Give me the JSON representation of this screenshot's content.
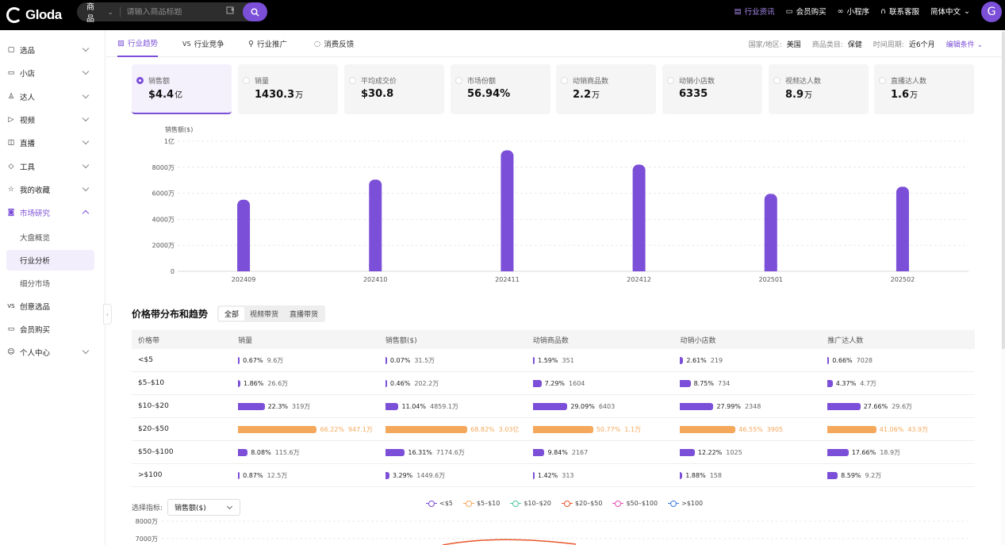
{
  "app": {
    "logo": "Gloda",
    "avatar": "G"
  },
  "search": {
    "type": "商品",
    "placeholder": "请输入商品标题"
  },
  "top_nav": [
    "行业资讯",
    "会员购买",
    "小程序",
    "联系客服",
    "简体中文"
  ],
  "sidebar": {
    "items": [
      {
        "label": "选品",
        "icon": "box-icon"
      },
      {
        "label": "小店",
        "icon": "shop-icon"
      },
      {
        "label": "达人",
        "icon": "user-icon"
      },
      {
        "label": "视频",
        "icon": "video-icon"
      },
      {
        "label": "直播",
        "icon": "live-icon"
      },
      {
        "label": "工具",
        "icon": "tool-icon"
      },
      {
        "label": "我的收藏",
        "icon": "star-icon"
      },
      {
        "label": "市场研究",
        "icon": "market-icon"
      }
    ],
    "sub_items": [
      "大盘概览",
      "行业分析",
      "细分市场"
    ],
    "bottom_items": [
      {
        "label": "创意选品",
        "icon": "vs-icon"
      },
      {
        "label": "会员购买",
        "icon": "card-icon"
      },
      {
        "label": "个人中心",
        "icon": "smile-icon"
      }
    ]
  },
  "tabs": [
    "行业趋势",
    "行业竞争",
    "行业推广",
    "消费反馈"
  ],
  "filters": {
    "country_label": "国家/地区:",
    "country": "美国",
    "category_label": "商品类目:",
    "category": "保健",
    "period_label": "时间周期:",
    "period": "近6个月",
    "edit": "编辑条件"
  },
  "cards": [
    {
      "label": "销售额",
      "value": "$4.4",
      "unit": "亿"
    },
    {
      "label": "销量",
      "value": "1430.3",
      "unit": "万"
    },
    {
      "label": "平均成交价",
      "value": "$30.8",
      "unit": ""
    },
    {
      "label": "市场份额",
      "value": "56.94%",
      "unit": ""
    },
    {
      "label": "动销商品数",
      "value": "2.2",
      "unit": "万"
    },
    {
      "label": "动销小店数",
      "value": "6335",
      "unit": ""
    },
    {
      "label": "视频达人数",
      "value": "8.9",
      "unit": "万"
    },
    {
      "label": "直播达人数",
      "value": "1.6",
      "unit": "万"
    }
  ],
  "chart_data": {
    "type": "bar",
    "ylabel": "销售额($)",
    "categories": [
      "202409",
      "202410",
      "202411",
      "202412",
      "202501",
      "202502"
    ],
    "values": [
      5500,
      7050,
      9300,
      8200,
      5950,
      6500
    ],
    "yticks": [
      "0",
      "2000万",
      "4000万",
      "6000万",
      "8000万",
      "1亿"
    ],
    "ylim": [
      0,
      10000
    ],
    "unit": "万",
    "color": "#7b4fd7",
    "grid": true
  },
  "section2": {
    "title": "价格带分布和趋势",
    "segments": [
      "全部",
      "视频带货",
      "直播带货"
    ],
    "headers": [
      "价格带",
      "销量",
      "销售额($)",
      "动销商品数",
      "动销小店数",
      "推广达人数"
    ],
    "rows": [
      {
        "band": "<$5",
        "cells": [
          [
            "0.67%",
            "9.6万",
            0.67
          ],
          [
            "0.07%",
            "31.5万",
            0.07
          ],
          [
            "1.59%",
            "351",
            1.59
          ],
          [
            "2.61%",
            "219",
            2.61
          ],
          [
            "0.66%",
            "7028",
            0.66
          ]
        ]
      },
      {
        "band": "$5–$10",
        "cells": [
          [
            "1.86%",
            "26.6万",
            1.86
          ],
          [
            "0.46%",
            "202.2万",
            0.46
          ],
          [
            "7.29%",
            "1604",
            7.29
          ],
          [
            "8.75%",
            "734",
            8.75
          ],
          [
            "4.37%",
            "4.7万",
            4.37
          ]
        ]
      },
      {
        "band": "$10–$20",
        "cells": [
          [
            "22.3%",
            "319万",
            22.3
          ],
          [
            "11.04%",
            "4859.1万",
            11.04
          ],
          [
            "29.09%",
            "6403",
            29.09
          ],
          [
            "27.99%",
            "2348",
            27.99
          ],
          [
            "27.66%",
            "29.6万",
            27.66
          ]
        ]
      },
      {
        "band": "$20–$50",
        "cells": [
          [
            "66.22%",
            "947.1万",
            66.22
          ],
          [
            "68.82%",
            "3.03亿",
            68.82
          ],
          [
            "50.77%",
            "1.1万",
            50.77
          ],
          [
            "46.55%",
            "3905",
            46.55
          ],
          [
            "41.06%",
            "43.9万",
            41.06
          ]
        ]
      },
      {
        "band": "$50–$100",
        "cells": [
          [
            "8.08%",
            "115.6万",
            8.08
          ],
          [
            "16.31%",
            "7174.6万",
            16.31
          ],
          [
            "9.84%",
            "2167",
            9.84
          ],
          [
            "12.22%",
            "1025",
            12.22
          ],
          [
            "17.66%",
            "18.9万",
            17.66
          ]
        ]
      },
      {
        "band": ">$100",
        "cells": [
          [
            "0.87%",
            "12.5万",
            0.87
          ],
          [
            "3.29%",
            "1449.6万",
            3.29
          ],
          [
            "1.42%",
            "313",
            1.42
          ],
          [
            "1.88%",
            "158",
            1.88
          ],
          [
            "8.59%",
            "9.2万",
            8.59
          ]
        ]
      }
    ],
    "highlight_row": 3,
    "metric_label": "选择指标:",
    "metric_value": "销售额($)",
    "legend": [
      {
        "name": "<$5",
        "color": "#7b4fd7"
      },
      {
        "name": "$5–$10",
        "color": "#f5a85b"
      },
      {
        "name": "$10–$20",
        "color": "#4cc9a0"
      },
      {
        "name": "$20–$50",
        "color": "#e8572a"
      },
      {
        "name": "$50–$100",
        "color": "#e44fb0"
      },
      {
        "name": ">$100",
        "color": "#3a7be0"
      }
    ],
    "y2ticks": [
      "8000万",
      "7000万"
    ]
  }
}
